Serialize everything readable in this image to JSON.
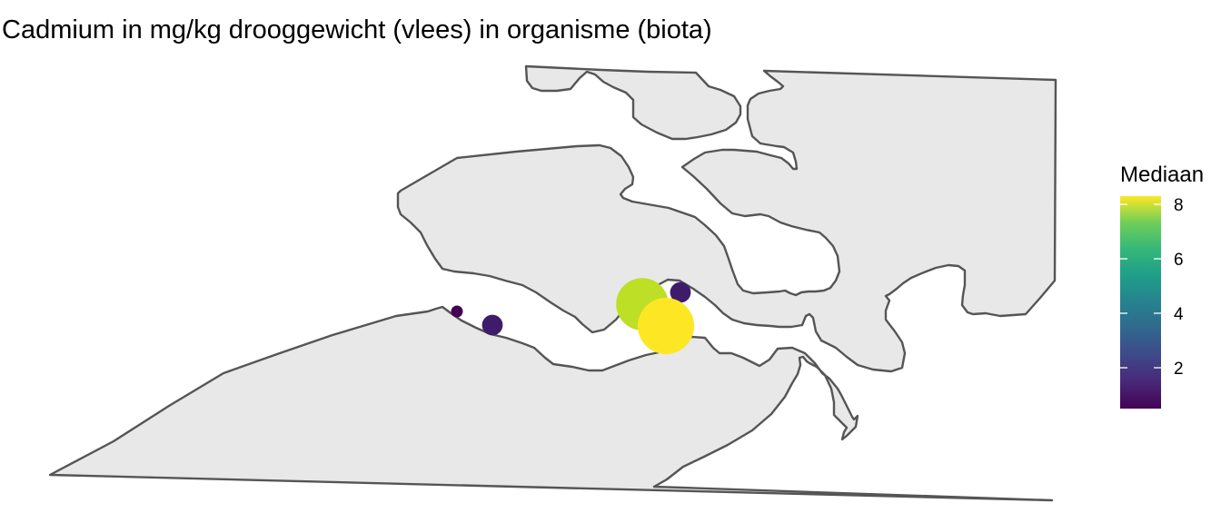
{
  "title": "Cadmium in mg/kg drooggewicht (vlees) in organisme (biota)",
  "legend": {
    "title": "Mediaan",
    "ticks": [
      {
        "label": "2",
        "value": 2
      },
      {
        "label": "4",
        "value": 4
      },
      {
        "label": "6",
        "value": 6
      },
      {
        "label": "8",
        "value": 8
      }
    ]
  },
  "colors": {
    "land_fill": "#e8e8e8",
    "land_stroke": "#555555",
    "background": "#ffffff"
  },
  "chart_data": {
    "type": "scatter",
    "subtype": "map-bubble",
    "title": "Cadmium in mg/kg drooggewicht (vlees) in organisme (biota)",
    "color_scale": {
      "name": "viridis",
      "min": 0.5,
      "max": 8.3,
      "legend_title": "Mediaan",
      "breaks": [
        2,
        4,
        6,
        8
      ]
    },
    "size_encodes": "Mediaan",
    "points": [
      {
        "id": "station-west-small",
        "mediaan": 0.5,
        "color": "#440154"
      },
      {
        "id": "station-west",
        "mediaan": 1.3,
        "color": "#3f1c6b"
      },
      {
        "id": "station-east-upper",
        "mediaan": 1.3,
        "color": "#3f1c6b"
      },
      {
        "id": "station-mid-large",
        "mediaan": 7.2,
        "color": "#bddf26"
      },
      {
        "id": "station-mid-largest",
        "mediaan": 8.3,
        "color": "#fde725"
      }
    ]
  }
}
